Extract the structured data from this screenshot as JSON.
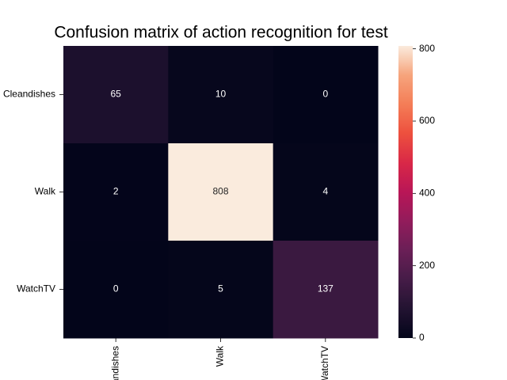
{
  "chart_data": {
    "type": "heatmap",
    "title": "Confusion matrix of action recognition for test",
    "x_categories": [
      "Cleandishes",
      "Walk",
      "WatchTV"
    ],
    "y_categories": [
      "Cleandishes",
      "Walk",
      "WatchTV"
    ],
    "values": [
      [
        65,
        10,
        0
      ],
      [
        2,
        808,
        4
      ],
      [
        0,
        5,
        137
      ]
    ],
    "colormap": "rocket",
    "clim": [
      0,
      808
    ],
    "cticks": [
      0,
      200,
      400,
      600,
      800
    ]
  }
}
